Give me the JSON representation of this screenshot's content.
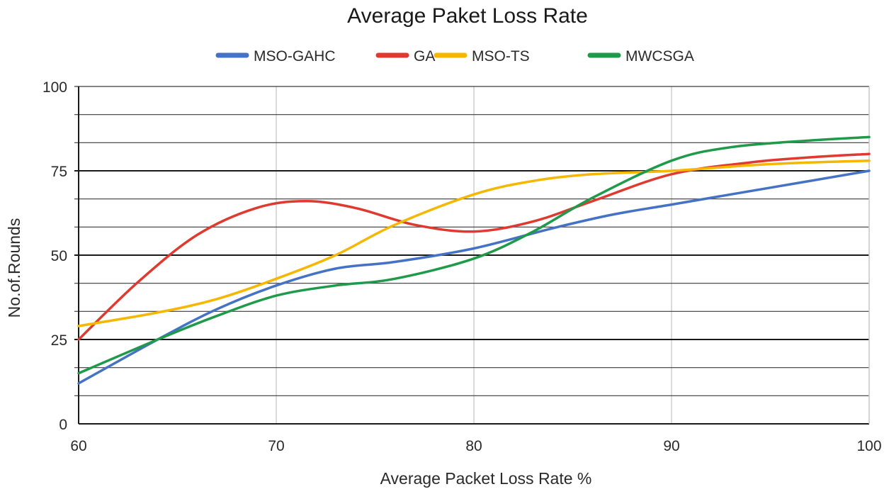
{
  "chart_data": {
    "type": "line",
    "title": "Average Paket Loss Rate",
    "xlabel": "Average Packet Loss Rate %",
    "ylabel": "No.of.Rounds",
    "x": [
      60,
      70,
      80,
      90,
      100
    ],
    "xlim": [
      60,
      100
    ],
    "ylim": [
      0,
      100
    ],
    "xticks": [
      "60",
      "70",
      "80",
      "90",
      "100"
    ],
    "yticks": [
      "0",
      "25",
      "50",
      "75",
      "100"
    ],
    "legend_position": "top-center",
    "series": [
      {
        "name": "MSO-GAHC",
        "color": "#4472c4",
        "points": [
          [
            60,
            12
          ],
          [
            64,
            25
          ],
          [
            67,
            34
          ],
          [
            70,
            41
          ],
          [
            73,
            46
          ],
          [
            76,
            48
          ],
          [
            80,
            52
          ],
          [
            84,
            58
          ],
          [
            87,
            62
          ],
          [
            90,
            65
          ],
          [
            95,
            70
          ],
          [
            100,
            75
          ]
        ]
      },
      {
        "name": "GA",
        "color": "#e03a30",
        "points": [
          [
            60,
            25
          ],
          [
            63,
            42
          ],
          [
            66,
            56
          ],
          [
            69,
            64
          ],
          [
            71.5,
            66
          ],
          [
            74,
            64
          ],
          [
            77,
            59
          ],
          [
            80,
            57
          ],
          [
            83,
            60
          ],
          [
            86,
            66
          ],
          [
            90,
            74
          ],
          [
            94,
            77.5
          ],
          [
            97,
            79
          ],
          [
            100,
            80
          ]
        ]
      },
      {
        "name": "MSO-TS",
        "color": "#f5b700",
        "points": [
          [
            60,
            29
          ],
          [
            64,
            33
          ],
          [
            67,
            37
          ],
          [
            70,
            43
          ],
          [
            73,
            50
          ],
          [
            76,
            59
          ],
          [
            80,
            68
          ],
          [
            83,
            72
          ],
          [
            86,
            74
          ],
          [
            90,
            75
          ],
          [
            95,
            77
          ],
          [
            100,
            78
          ]
        ]
      },
      {
        "name": "MWCSGA",
        "color": "#1f9a4a",
        "points": [
          [
            60,
            15
          ],
          [
            64,
            25
          ],
          [
            67,
            32
          ],
          [
            70,
            38
          ],
          [
            73,
            41
          ],
          [
            76,
            43
          ],
          [
            80,
            49
          ],
          [
            83,
            57
          ],
          [
            86,
            67
          ],
          [
            90,
            78
          ],
          [
            93,
            82
          ],
          [
            97,
            84
          ],
          [
            100,
            85
          ]
        ]
      }
    ]
  }
}
